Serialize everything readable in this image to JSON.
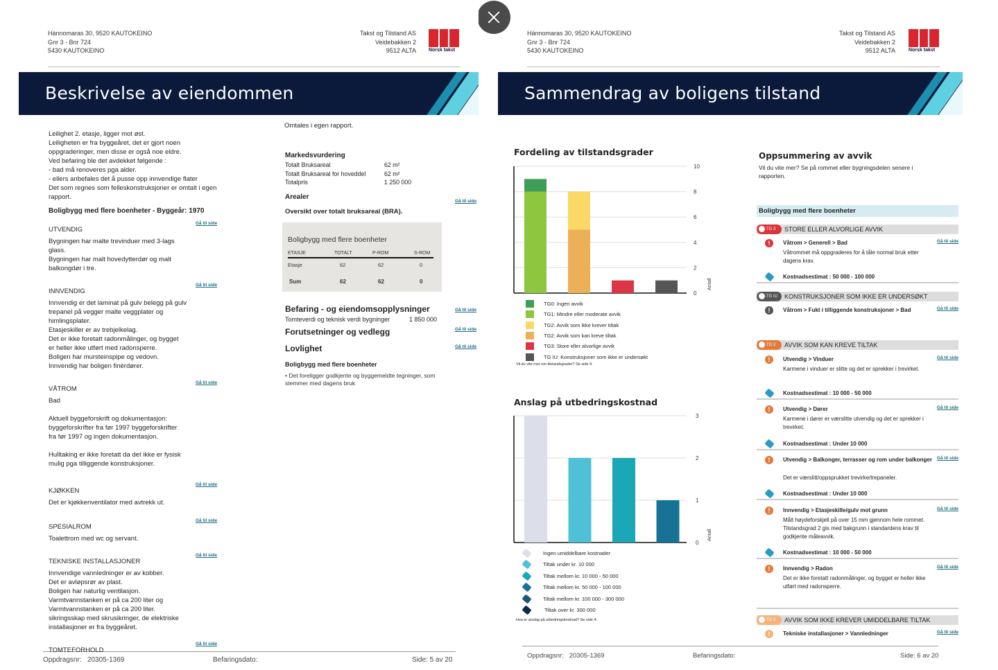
{
  "viewer": {
    "close_label": "close"
  },
  "left_page": {
    "header": {
      "address": [
        "Hánnomaras 30, 9520 KAUTOKEINO",
        "Gnr 3 - Bnr 724",
        "5430 KAUTOKEINO"
      ],
      "company": [
        "Takst og Tilstand AS",
        "Veidebakken 2",
        "9512 ALTA"
      ],
      "logo_text": "Norsk takst"
    },
    "title": "Beskrivelse av eiendommen",
    "intro": [
      "Leilighet 2. etasje, ligger mot øst.",
      "Leiligheten er fra byggeåret, det er gjort noen",
      "oppgraderinger, men disse er også noe eldre.",
      "Ved befaring ble det avdekket følgende :",
      "- bad må renoveres pga alder.",
      "- ellers anbefales det å pusse opp innvendige flater",
      "Det som regnes som felleskonstruksjoner er omtalt i egen",
      "rapport."
    ],
    "building_heading": "Boligbygg med flere boenheter  - Byggeår: 1970",
    "goto": "Gå til side",
    "sections": [
      {
        "title": "UTVENDIG",
        "lines": [
          "Bygningen har malte trevinduer med 3-lags",
          "glass.",
          "Bygningen har malt hovedytterdør og malt",
          "balkongdør i tre."
        ]
      },
      {
        "title": "INNVENDIG",
        "lines": [
          "Innvendig er det laminat på gulv belegg på gulv",
          "trepanel på vegger malte veggplater og",
          "himlingsplater.",
          "Etasjeskiller er av trebjelkelag.",
          "Det er ikke foretatt radonmålinger, og bygget",
          "er heller ikke utført med radonsperre.",
          "Boligen har mursteinspipe og vedovn.",
          "Innvendig har boligen finèrdører."
        ]
      },
      {
        "title": "VÅTROM",
        "lines": [
          " Bad",
          "",
          " Aktuell byggeforskrift og dokumentasjon:",
          "byggeforskrifter fra før 1997  byggeforskrifter",
          "fra før 1997  og ingen dokumentasjon.",
          "",
          " Hulltaking er ikke foretatt da det ikke er fysisk",
          "mulig pga tilliggende konstruksjoner."
        ]
      },
      {
        "title": "KJØKKEN",
        "lines": [
          "Det er kjøkkenventilator med avtrekk ut."
        ]
      },
      {
        "title": "SPESIALROM",
        "lines": [
          "Toalettrom med wc og servant."
        ]
      },
      {
        "title": "TEKNISKE INSTALLASJONER",
        "lines": [
          "Innvendige vannledninger er av kobber.",
          "Det er avløpsrør av plast.",
          "Boligen har naturlig ventilasjon.",
          "Varmtvannstanken er på ca 200 liter og",
          "Varmtvannstanken er på ca 200 liter.",
          "sikringsskap med skrusikringer, de elektriske",
          "installasjoner er fra byggeåret."
        ]
      },
      {
        "title": "TOMTEFORHOLD",
        "lines": []
      }
    ],
    "right_col": {
      "omtales": "Omtales i egen rapport.",
      "market_title": "Markedsvurdering",
      "market": [
        {
          "label": "Totalt Bruksareal",
          "value": "62 m²"
        },
        {
          "label": "Totalt Bruksareal for hoveddel",
          "value": "62 m²"
        },
        {
          "label": "Totalpris",
          "value": "1 250 000"
        }
      ],
      "arealer": "Arealer",
      "bra_title": "Oversikt over totalt bruksareal (BRA).",
      "table": {
        "title": "Boligbygg med flere boenheter",
        "headers": [
          "ETASJE",
          "TOTALT",
          "P-ROM",
          "S-ROM"
        ],
        "rows": [
          [
            "Etasje",
            "62",
            "62",
            "0"
          ]
        ],
        "sum": [
          "Sum",
          "62",
          "62",
          "0"
        ]
      },
      "befaring": "Befaring - og eiendomsopplysninger",
      "tomteverdi": {
        "label": "Tomteverdi og teknisk verdi bygninger",
        "value": "1 850 000"
      },
      "forutsetninger": "Forutsetninger og vedlegg",
      "lovlighet": "Lovlighet",
      "lov_sub": "Boligbygg med flere boenheter",
      "lov_text": [
        "• Det foreligger godkjente og byggemeldte tegninger, som",
        "stemmer med dagens bruk"
      ]
    },
    "footer": {
      "oppdrag_label": "Oppdragsnr:",
      "oppdrag": "20305-1369",
      "befaring_label": "Befaringsdato:",
      "side": "Side: 5 av 20"
    }
  },
  "right_page": {
    "header": {
      "address": [
        "Hánnomaras 30, 9520 KAUTOKEINO",
        "Gnr 3 - Bnr 724",
        "5430 KAUTOKEINO"
      ],
      "company": [
        "Takst og Tilstand AS",
        "Veidebakken 2",
        "9512 ALTA"
      ],
      "logo_text": "Norsk takst"
    },
    "title": "Sammendrag av boligens tilstand",
    "summary": {
      "title": "Oppsummering av avvik",
      "subtitle": [
        "Vil du vite mer? Se på rommet eller bygningsdelen senere i",
        "rapporten."
      ],
      "building": "Boligbygg med flere boenheter",
      "goto": "Gå til side",
      "cost_label": "Kostnadsestimat :",
      "groups": [
        {
          "badge": "TG 3",
          "title": "STORE ELLER ALVORLIGE AVVIK",
          "color": "#d9353a"
        },
        {
          "badge": "TG IU",
          "title": "KONSTRUKSJONER SOM IKKE ER UNDERSØKT",
          "color": "#555555"
        },
        {
          "badge": "TG 2",
          "title": "AVVIK SOM KAN KREVE TILTAK",
          "color": "#e57a3c"
        },
        {
          "badge": "TG 2",
          "title": "AVVIK SOM IKKE KREVER UMIDDELBARE TILTAK",
          "color": "#f3b37a"
        }
      ],
      "items": [
        {
          "title": "Våtrom > Generell > Bad",
          "desc": "Våtrommet må oppgraderes for å tåle normal bruk etter dagens krav.",
          "cost": "50 000 - 100 000"
        },
        {
          "title": "Våtrom > Fukt i tilliggende konstruksjoner > Bad"
        },
        {
          "title": "Utvendig > Vinduer",
          "desc": "Karmene i vinduer er slitte og det er sprekker i trevirket.",
          "cost": "10 000 - 50 000"
        },
        {
          "title": "Utvendig > Dører",
          "desc": "Karmene i dører er værslitte utvendig og det er sprekker i trevirket.",
          "cost": "Under 10 000"
        },
        {
          "title": "Utvendig > Balkonger, terrasser og rom under balkonger",
          "desc": "Det er værslitt/oppsprukket trevirke/trepaneler.",
          "cost": "Under 10 000"
        },
        {
          "title": "Innvendig > Etasjeskille/gulv mot grunn",
          "desc": "Målt høydeforskjell på over 15 mm gjennom hele rommet. Tilstandsgrad 2 gis med bakgrunn i standardens krav til godkjente måleavvik.",
          "cost": "10 000 - 50 000"
        },
        {
          "title": "Innvendig > Radon",
          "desc": "Det er ikke foretatt radonmålinger, og bygget er heller ikke utført med radonsperre."
        },
        {
          "title": "Tekniske installasjoner > Vannledninger"
        }
      ]
    },
    "footer": {
      "oppdrag_label": "Oppdragsnr:",
      "oppdrag": "20305-1369",
      "befaring_label": "Befaringsdato:",
      "side": "Side: 6 av 20"
    }
  },
  "chart_data": [
    {
      "type": "bar",
      "stacked": true,
      "title": "Fordeling av tilstandsgrader",
      "ylabel": "Antall",
      "ylim": [
        0,
        10
      ],
      "yticks": [
        0,
        2,
        4,
        6,
        8,
        10
      ],
      "grid": true,
      "series": [
        {
          "name": "TG0: Ingen avvik",
          "color": "#3e9e57",
          "values": [
            1,
            0,
            0,
            0
          ]
        },
        {
          "name": "TG1: Mindre eller moderate avvik",
          "color": "#8dc63f",
          "values": [
            8,
            0,
            0,
            0
          ]
        },
        {
          "name": "TG2: Avvik som ikke krever tiltak",
          "color": "#fcd867",
          "values": [
            0,
            3,
            0,
            0
          ]
        },
        {
          "name": "TG2: Avvik som kan kreve tiltak",
          "color": "#ecb158",
          "values": [
            0,
            5,
            0,
            0
          ]
        },
        {
          "name": "TG3: Store eller alvorlige avvik",
          "color": "#dc3545",
          "values": [
            0,
            0,
            1,
            0
          ]
        },
        {
          "name": "TG IU: Konstruksjoner som ikke er undersøkt",
          "color": "#555555",
          "values": [
            0,
            0,
            0,
            1
          ]
        }
      ],
      "stack_order": [
        1,
        0,
        3,
        2,
        4,
        5
      ],
      "note": "Vil du vite mer om tilstandsgrader? Se side 4."
    },
    {
      "type": "bar",
      "title": "Anslag på utbedringskostnad",
      "ylabel": "Antall",
      "ylim": [
        0,
        3
      ],
      "yticks": [
        0,
        1,
        2,
        3
      ],
      "grid": true,
      "categories": [
        "Ingen umiddelbare kostnader",
        "Tiltak under kr. 10 000",
        "Tiltak mellom kr. 10 000 - 50 000",
        "Tiltak mellom kr. 50 000 - 100 000",
        "Tiltak mellom kr. 100 000 - 300 000",
        "Tiltak over kr.  300 000"
      ],
      "values": [
        3,
        2,
        2,
        1,
        0,
        0
      ],
      "colors": [
        "#dcdfe9",
        "#4fc1d6",
        "#1ba8b6",
        "#167396",
        "#1d5770",
        "#0f2a44"
      ],
      "note": "Hva er anslag på utbedringskostnad? Se side 4."
    }
  ]
}
